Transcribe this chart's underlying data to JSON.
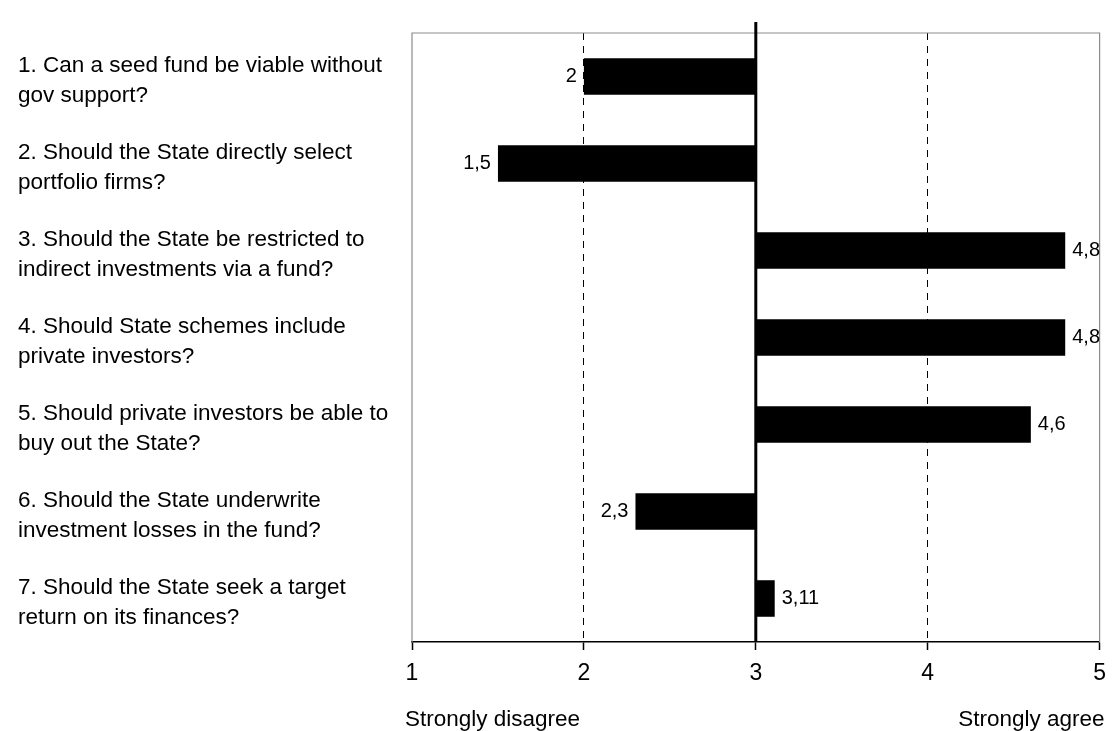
{
  "chart_data": {
    "type": "bar",
    "orientation": "horizontal",
    "categories": [
      "1. Can a seed fund be viable without gov support?",
      "2. Should the State directly select portfolio firms?",
      "3. Should the State be restricted to indirect investments via a fund?",
      "4. Should State schemes include private investors?",
      "5. Should private investors be able to buy out the State?",
      "6. Should the State underwrite investment losses in the fund?",
      "7. Should the State seek a target return on its finances?"
    ],
    "base": [
      3,
      3,
      3,
      3,
      3,
      3,
      3
    ],
    "values": [
      -1,
      -1.5,
      1.8,
      1.8,
      1.6,
      -0.7,
      0.11
    ],
    "color": "#000000",
    "value_labels": [
      "2",
      "1,5",
      "4,8",
      "4,8",
      "4,6",
      "2,3",
      "3,11"
    ],
    "xlim": [
      1,
      5
    ],
    "xticks": [
      1,
      2,
      3,
      4,
      5
    ],
    "grid": "x",
    "ref_lines": [
      {
        "axis": "x",
        "value": 3
      }
    ],
    "annotations": [
      "Strongly disagree",
      "Strongly agree"
    ]
  }
}
